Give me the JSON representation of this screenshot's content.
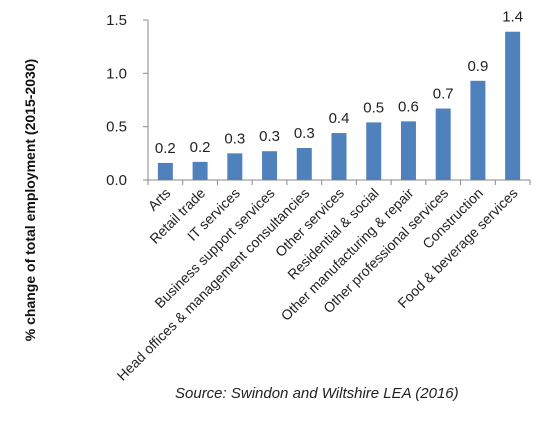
{
  "chart_data": {
    "type": "bar",
    "categories": [
      "Arts",
      "Retail trade",
      "IT services",
      "Business support services",
      "Head offices & management consultancies",
      "Other services",
      "Residential & social",
      "Other manufacturing & repair",
      "Other professional services",
      "Construction",
      "Food & beverage services"
    ],
    "values": [
      0.16,
      0.17,
      0.25,
      0.27,
      0.3,
      0.44,
      0.54,
      0.55,
      0.67,
      0.93,
      1.39
    ],
    "data_labels": [
      "0.2",
      "0.2",
      "0.3",
      "0.3",
      "0.3",
      "0.4",
      "0.5",
      "0.6",
      "0.7",
      "0.9",
      "1.4"
    ],
    "y_ticks": [
      "0.0",
      "0.5",
      "1.0",
      "1.5"
    ],
    "ylim": [
      0,
      1.5
    ],
    "ylabel": "% change of total employment (2015-2030)",
    "xlabel": "",
    "source": "Source: Swindon and Wiltshire LEA (2016)",
    "bar_color": "#4f81bd",
    "grid": false,
    "legend": "none"
  }
}
